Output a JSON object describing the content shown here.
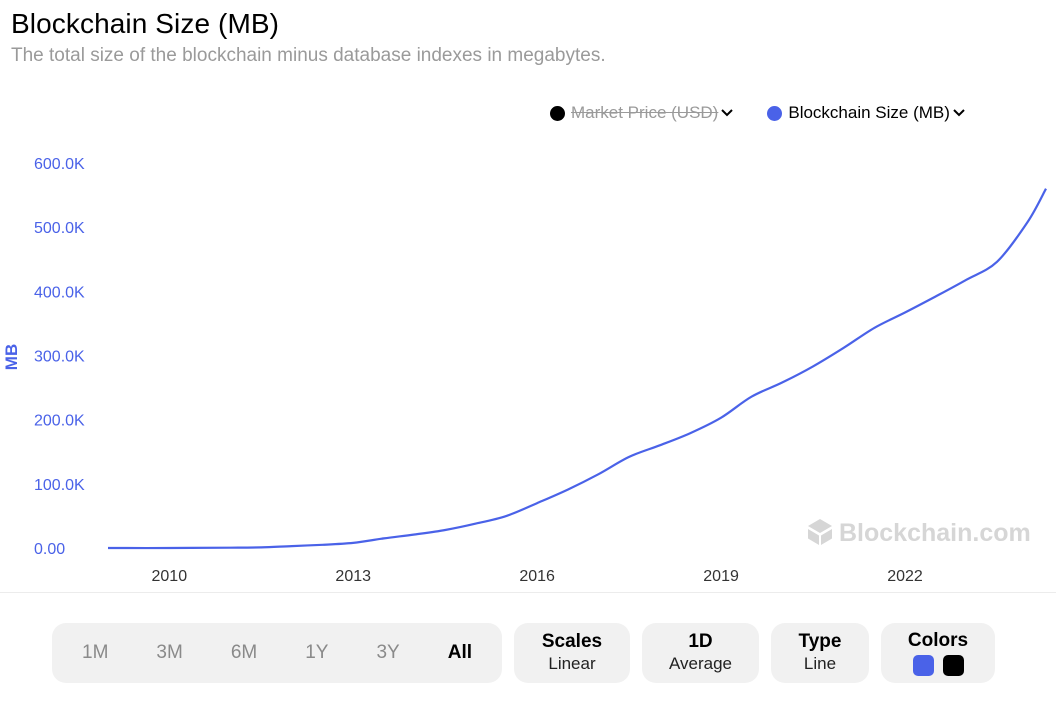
{
  "header": {
    "title": "Blockchain Size (MB)",
    "subtitle": "The total size of the blockchain minus database indexes in megabytes."
  },
  "legend": [
    {
      "label": "Market Price (USD)",
      "color": "#000000",
      "disabled": true
    },
    {
      "label": "Blockchain Size (MB)",
      "color": "#4a62e8",
      "disabled": false
    }
  ],
  "watermark": "Blockchain.com",
  "controls": {
    "ranges": [
      "1M",
      "3M",
      "6M",
      "1Y",
      "3Y",
      "All"
    ],
    "active_range": "All",
    "scales": {
      "title": "Scales",
      "value": "Linear"
    },
    "average": {
      "title": "1D",
      "value": "Average"
    },
    "type": {
      "title": "Type",
      "value": "Line"
    },
    "colors": {
      "title": "Colors",
      "swatches": [
        "#4a62e8",
        "#000000"
      ]
    }
  },
  "chart_data": {
    "type": "line",
    "ylabel": "MB",
    "xlabel": "",
    "ylim": [
      0,
      600000
    ],
    "yticks": [
      0,
      100000,
      200000,
      300000,
      400000,
      500000,
      600000
    ],
    "ytick_labels": [
      "0.00",
      "100.0K",
      "200.0K",
      "300.0K",
      "400.0K",
      "500.0K",
      "600.0K"
    ],
    "xlim": [
      2009.0,
      2024.3
    ],
    "xticks": [
      2010,
      2013,
      2016,
      2019,
      2022
    ],
    "xtick_labels": [
      "2010",
      "2013",
      "2016",
      "2019",
      "2022"
    ],
    "grid": false,
    "legend_position": "top-right",
    "series": [
      {
        "name": "Blockchain Size (MB)",
        "color": "#4a62e8",
        "x": [
          2009.0,
          2010.0,
          2011.0,
          2011.5,
          2012.0,
          2012.5,
          2013.0,
          2013.5,
          2014.0,
          2014.5,
          2015.0,
          2015.5,
          2016.0,
          2016.5,
          2017.0,
          2017.5,
          2018.0,
          2018.5,
          2019.0,
          2019.5,
          2020.0,
          2020.5,
          2021.0,
          2021.5,
          2022.0,
          2022.5,
          2023.0,
          2023.5,
          2024.0,
          2024.3
        ],
        "y": [
          0,
          0,
          500,
          1000,
          3000,
          5000,
          8000,
          15000,
          21000,
          28000,
          38000,
          50000,
          70000,
          91000,
          115000,
          142000,
          160000,
          179000,
          203000,
          236000,
          258000,
          283000,
          312000,
          343000,
          367000,
          392000,
          418000,
          446000,
          508000,
          560000
        ]
      }
    ]
  }
}
